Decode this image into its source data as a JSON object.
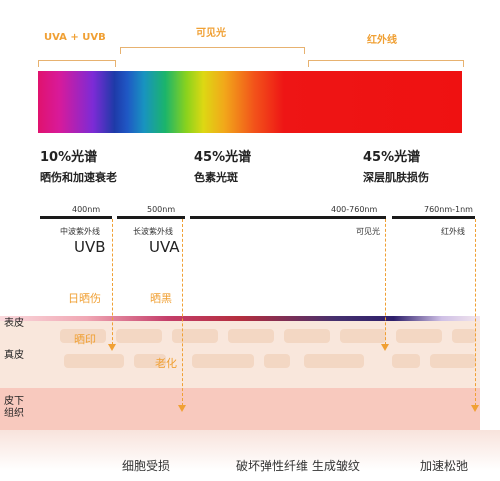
{
  "top_labels": {
    "uv": "UVA + UVB",
    "visible": "可见光",
    "infrared": "红外线"
  },
  "spectrum_stats": [
    {
      "percent": "10%光谱",
      "desc": "晒伤和加速衰老"
    },
    {
      "percent": "45%光谱",
      "desc": "色素光斑"
    },
    {
      "percent": "45%光谱",
      "desc": "深层肌肤损伤"
    }
  ],
  "bands": [
    {
      "nm": "400nm",
      "small": "中波紫外线",
      "big": "UVB"
    },
    {
      "nm": "500nm",
      "small": "长波紫外线",
      "big": "UVA"
    },
    {
      "nm": "400-760nm",
      "small": "可见光",
      "big": ""
    },
    {
      "nm": "760nm-1nm",
      "small": "红外线",
      "big": ""
    }
  ],
  "effects": {
    "uvb": "日晒伤",
    "uva": "晒黑",
    "spot": "晒印",
    "aging": "老化"
  },
  "layers": {
    "epidermis": "表皮",
    "dermis": "真皮",
    "subcutaneous": "皮下\n组织"
  },
  "bottom_labels": [
    "细胞受损",
    "破坏弹性纤维 生成皱纹",
    "加速松弛"
  ],
  "colors": {
    "accent": "#f0a034",
    "skin_base": "#f9e7dc",
    "subcutaneous": "#f8c9be"
  }
}
